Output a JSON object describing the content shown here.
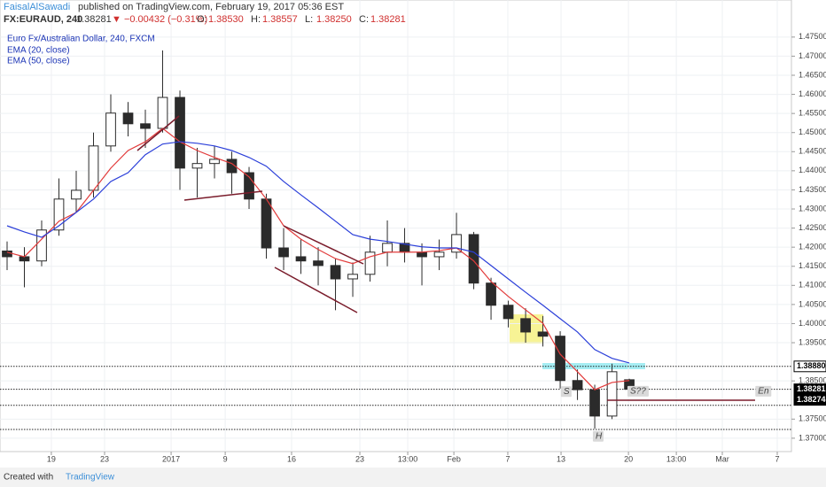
{
  "header": {
    "author": "FaisalAlSawadi",
    "published": "published on TradingView.com, February 19, 2017 05:36 EST",
    "symbol": "FX:EURAUD, 240",
    "last": "1.38281",
    "change": "▼ −0.00432 (−0.31%)",
    "ohlc": [
      {
        "label": "O:",
        "value": "1.38530"
      },
      {
        "label": "H:",
        "value": "1.38557"
      },
      {
        "label": "L:",
        "value": "1.38250"
      },
      {
        "label": "C:",
        "value": "1.38281"
      }
    ]
  },
  "footer": {
    "created": "Created with",
    "brand": "TradingView"
  },
  "chart_data": {
    "type": "candlestick",
    "title": "Euro Fx/Australian Dollar, 240, FXCM",
    "color": "#2b2b2b",
    "grid": true,
    "xlim": [
      -0.41,
      45.38
    ],
    "ylim": [
      1.3665,
      1.4847
    ],
    "xticks": [
      {
        "value": 2.56,
        "label": "19"
      },
      {
        "value": 5.64,
        "label": "23"
      },
      {
        "value": 9.49,
        "label": "2017"
      },
      {
        "value": 12.62,
        "label": "9"
      },
      {
        "value": 16.46,
        "label": "16"
      },
      {
        "value": 20.41,
        "label": "23"
      },
      {
        "value": 23.18,
        "label": "13:00"
      },
      {
        "value": 25.85,
        "label": "Feb"
      },
      {
        "value": 28.97,
        "label": "7"
      },
      {
        "value": 32.05,
        "label": "13"
      },
      {
        "value": 35.95,
        "label": "20"
      },
      {
        "value": 38.72,
        "label": "13:00"
      },
      {
        "value": 41.38,
        "label": "Mar"
      },
      {
        "value": 44.56,
        "label": "7"
      }
    ],
    "yticks": [
      {
        "value": 1.475,
        "label": "1.47500"
      },
      {
        "value": 1.47,
        "label": "1.47000"
      },
      {
        "value": 1.465,
        "label": "1.46500"
      },
      {
        "value": 1.46,
        "label": "1.46000"
      },
      {
        "value": 1.455,
        "label": "1.45500"
      },
      {
        "value": 1.45,
        "label": "1.45000"
      },
      {
        "value": 1.445,
        "label": "1.44500"
      },
      {
        "value": 1.44,
        "label": "1.44000"
      },
      {
        "value": 1.435,
        "label": "1.43500"
      },
      {
        "value": 1.43,
        "label": "1.43000"
      },
      {
        "value": 1.425,
        "label": "1.42500"
      },
      {
        "value": 1.42,
        "label": "1.42000"
      },
      {
        "value": 1.415,
        "label": "1.41500"
      },
      {
        "value": 1.41,
        "label": "1.41000"
      },
      {
        "value": 1.405,
        "label": "1.40500"
      },
      {
        "value": 1.4,
        "label": "1.40000"
      },
      {
        "value": 1.395,
        "label": "1.39500"
      },
      {
        "value": 1.385,
        "label": "1.38500"
      },
      {
        "value": 1.375,
        "label": "1.37500"
      },
      {
        "value": 1.37,
        "label": "1.37000"
      }
    ],
    "open": [
      1.419,
      1.4175,
      1.4164,
      1.4245,
      1.4326,
      1.4349,
      1.4465,
      1.4551,
      1.4523,
      1.4511,
      1.4592,
      1.4407,
      1.4419,
      1.443,
      1.4395,
      1.4326,
      1.4198,
      1.4175,
      1.4164,
      1.4152,
      1.4117,
      1.4129,
      1.4187,
      1.421,
      1.4187,
      1.4175,
      1.4187,
      1.4233,
      1.4106,
      1.4048,
      1.4013,
      1.3978,
      1.3967,
      1.3851,
      1.3827,
      1.3758,
      1.3853
    ],
    "high": [
      1.4215,
      1.42,
      1.427,
      1.438,
      1.44,
      1.45,
      1.46,
      1.458,
      1.456,
      1.4715,
      1.461,
      1.446,
      1.4465,
      1.445,
      1.441,
      1.434,
      1.425,
      1.422,
      1.42,
      1.417,
      1.416,
      1.423,
      1.427,
      1.425,
      1.421,
      1.422,
      1.429,
      1.424,
      1.412,
      1.406,
      1.404,
      1.402,
      1.398,
      1.388,
      1.384,
      1.3895,
      1.38557
    ],
    "low": [
      1.414,
      1.4095,
      1.415,
      1.423,
      1.429,
      1.433,
      1.445,
      1.449,
      1.446,
      1.45,
      1.435,
      1.433,
      1.438,
      1.434,
      1.43,
      1.417,
      1.414,
      1.413,
      1.41,
      1.4035,
      1.407,
      1.411,
      1.415,
      1.416,
      1.41,
      1.414,
      1.417,
      1.409,
      1.401,
      1.399,
      1.395,
      1.394,
      1.383,
      1.38,
      1.3725,
      1.375,
      1.3825
    ],
    "close": [
      1.4175,
      1.4164,
      1.4245,
      1.4326,
      1.4349,
      1.4465,
      1.4551,
      1.4523,
      1.4511,
      1.4592,
      1.4407,
      1.4419,
      1.443,
      1.4395,
      1.4326,
      1.4198,
      1.4175,
      1.4164,
      1.4152,
      1.4117,
      1.4129,
      1.4187,
      1.421,
      1.4187,
      1.4175,
      1.4187,
      1.4233,
      1.4106,
      1.4048,
      1.4013,
      1.3978,
      1.3967,
      1.3851,
      1.3827,
      1.3758,
      1.3874,
      1.38281
    ],
    "series": [
      {
        "name": "EMA (20, close)",
        "color": "#e23b3b",
        "values": [
          1.4187,
          1.4175,
          1.4221,
          1.4268,
          1.4291,
          1.4349,
          1.4407,
          1.4453,
          1.4476,
          1.4511,
          1.4476,
          1.4453,
          1.4435,
          1.4419,
          1.4384,
          1.4326,
          1.4256,
          1.4221,
          1.4194,
          1.417,
          1.4157,
          1.4175,
          1.4187,
          1.4187,
          1.4187,
          1.4191,
          1.4198,
          1.4164,
          1.411,
          1.4071,
          1.4036,
          1.4001,
          1.392,
          1.3874,
          1.3827,
          1.3846,
          1.3851
        ]
      },
      {
        "name": "EMA (50, close)",
        "color": "#2b3fd9",
        "values": [
          1.4256,
          1.424,
          1.4226,
          1.4256,
          1.4291,
          1.4326,
          1.4372,
          1.4395,
          1.4442,
          1.447,
          1.4476,
          1.4472,
          1.4465,
          1.4453,
          1.4435,
          1.4412,
          1.4372,
          1.4337,
          1.4303,
          1.4268,
          1.4233,
          1.4221,
          1.4215,
          1.4208,
          1.4201,
          1.4198,
          1.4198,
          1.4187,
          1.4152,
          1.4117,
          1.4082,
          1.4048,
          1.4013,
          1.3978,
          1.3932,
          1.3909,
          1.3897
        ]
      }
    ],
    "levels": [
      1.3888,
      1.38281,
      1.3786,
      1.3723
    ],
    "price_labels": [
      {
        "value": 1.3888,
        "label": "1.38880",
        "color": "#ffffff"
      },
      {
        "value": 1.38281,
        "label": "1.38281",
        "color": "#000000"
      },
      {
        "value": 1.38274,
        "label": "1.38274",
        "color": "#000000"
      }
    ],
    "annotations": [
      {
        "x": 32.35,
        "y": 1.3822,
        "text": "S"
      },
      {
        "x": 36.2,
        "y": 1.3823,
        "text": "S??"
      },
      {
        "x": 34.2,
        "y": 1.3705,
        "text": "H"
      },
      {
        "x": 43.6,
        "y": 1.3823,
        "text": "En"
      }
    ]
  }
}
